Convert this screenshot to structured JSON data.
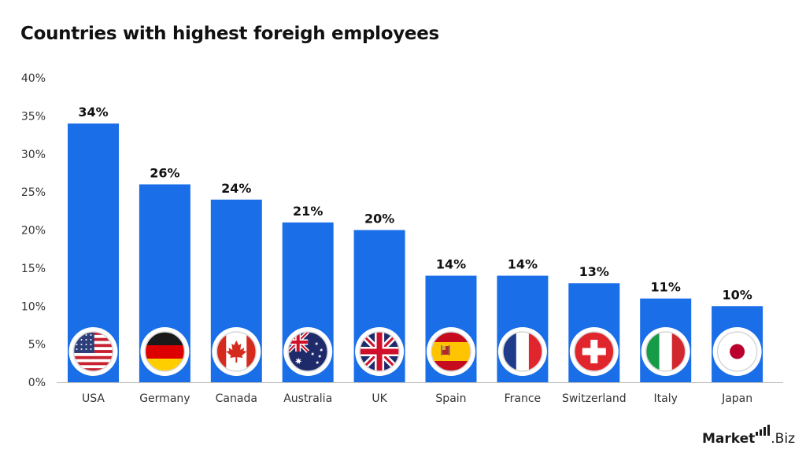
{
  "chart_data": {
    "type": "bar",
    "title": "Countries with highest foreigh employees",
    "categories": [
      "USA",
      "Germany",
      "Canada",
      "Australia",
      "UK",
      "Spain",
      "France",
      "Switzerland",
      "Italy",
      "Japan"
    ],
    "values": [
      34,
      26,
      24,
      21,
      20,
      14,
      14,
      13,
      11,
      10
    ],
    "data_labels": [
      "34%",
      "26%",
      "24%",
      "21%",
      "20%",
      "14%",
      "14%",
      "13%",
      "11%",
      "10%"
    ],
    "ylim": [
      0,
      40
    ],
    "yticks": [
      0,
      5,
      10,
      15,
      20,
      25,
      30,
      35,
      40
    ],
    "ytick_labels": [
      "0%",
      "5%",
      "10%",
      "15%",
      "20%",
      "25%",
      "30%",
      "35%",
      "40%"
    ],
    "xlabel": "",
    "ylabel": "",
    "grid": false,
    "legend": "none",
    "bar_color": "#1a6ee8",
    "flag_icons": [
      "usa-flag-icon",
      "germany-flag-icon",
      "canada-flag-icon",
      "australia-flag-icon",
      "uk-flag-icon",
      "spain-flag-icon",
      "france-flag-icon",
      "switzerland-flag-icon",
      "italy-flag-icon",
      "japan-flag-icon"
    ]
  },
  "branding": {
    "part1": "Market",
    "part2": ".Biz"
  }
}
